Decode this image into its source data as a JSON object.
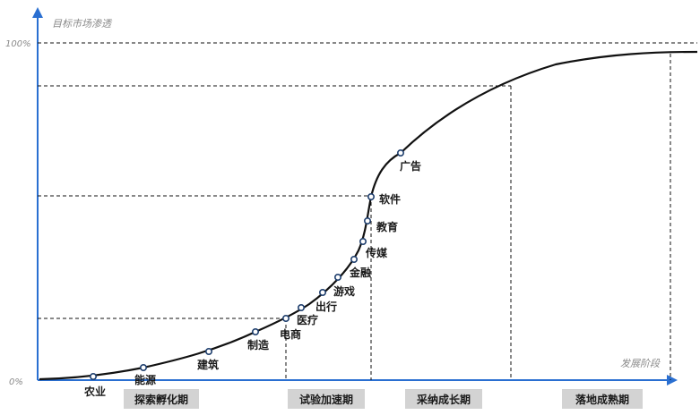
{
  "axes": {
    "y_label": "目标市场渗透",
    "x_label": "发展阶段",
    "y_top_tick": "100%",
    "y_bottom_tick": "0%"
  },
  "colors": {
    "axis": "#2a6fd1",
    "curve": "#111111",
    "point_stroke": "#1f3f6e",
    "stage_fill": "#d3d3d3"
  },
  "stages": [
    {
      "label": "探索孵化期"
    },
    {
      "label": "试验加速期"
    },
    {
      "label": "采纳成长期"
    },
    {
      "label": "落地成熟期"
    }
  ],
  "industries": [
    {
      "label": "农业"
    },
    {
      "label": "能源"
    },
    {
      "label": "建筑"
    },
    {
      "label": "制造"
    },
    {
      "label": "电商"
    },
    {
      "label": "医疗"
    },
    {
      "label": "出行"
    },
    {
      "label": "游戏"
    },
    {
      "label": "金融"
    },
    {
      "label": "传媒"
    },
    {
      "label": "教育"
    },
    {
      "label": "软件"
    },
    {
      "label": "广告"
    }
  ]
}
